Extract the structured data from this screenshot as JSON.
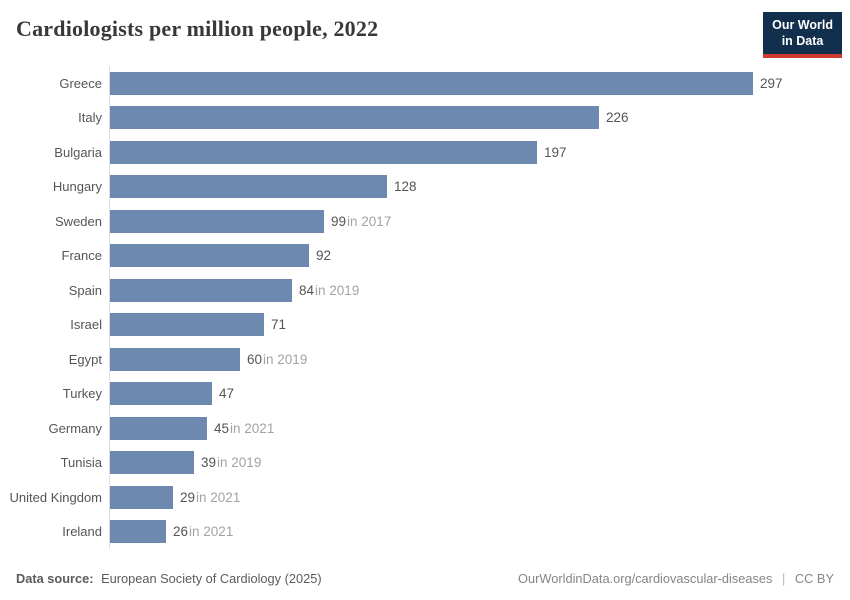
{
  "title": "Cardiologists per million people, 2022",
  "logo": {
    "line1": "Our World",
    "line2": "in Data"
  },
  "footer": {
    "source_label": "Data source:",
    "source_text": "European Society of Cardiology (2025)",
    "right_url": "OurWorldinData.org/cardiovascular-diseases",
    "separator": "|",
    "license": "CC BY"
  },
  "colors": {
    "bar": "#6d89b0",
    "axis": "#dedede",
    "title": "#383838",
    "label": "#555555",
    "value": "#555555",
    "note": "#a3a3a3",
    "footer": "#5b5b5b",
    "footer_right": "#858585",
    "logo_bg": "#12304e",
    "logo_accent": "#cf3b32"
  },
  "chart_data": {
    "type": "bar",
    "orientation": "horizontal",
    "title": "Cardiologists per million people, 2022",
    "xlabel": "",
    "ylabel": "",
    "xlim": [
      0,
      297
    ],
    "grid": false,
    "legend": false,
    "categories": [
      "Greece",
      "Italy",
      "Bulgaria",
      "Hungary",
      "Sweden",
      "France",
      "Spain",
      "Israel",
      "Egypt",
      "Turkey",
      "Germany",
      "Tunisia",
      "United Kingdom",
      "Ireland"
    ],
    "values": [
      297,
      226,
      197,
      128,
      99,
      92,
      84,
      71,
      60,
      47,
      45,
      39,
      29,
      26
    ],
    "value_notes": [
      "",
      "",
      "",
      "",
      "in 2017",
      "",
      "in 2019",
      "",
      "in 2019",
      "",
      "in 2021",
      "in 2019",
      "in 2021",
      "in 2021"
    ]
  }
}
